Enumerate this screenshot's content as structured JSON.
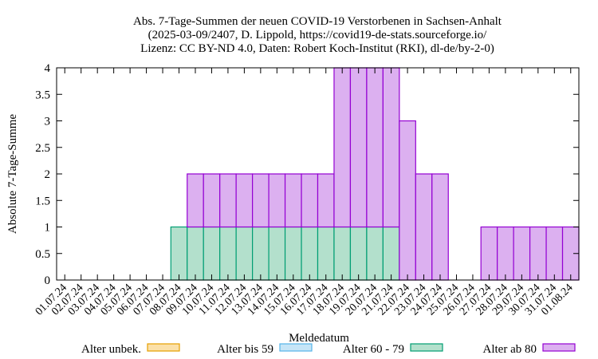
{
  "chart_data": {
    "type": "bar",
    "stacked": true,
    "title_lines": [
      "Abs. 7-Tage-Summen der neuen COVID-19 Verstorbenen in Sachsen-Anhalt",
      "(2025-03-09/2407, D. Lippold, https://covid19-de-stats.sourceforge.io/",
      "Lizenz: CC BY-ND 4.0, Daten: Robert Koch-Institut (RKI), dl-de/by-2-0)"
    ],
    "xlabel": "Meldedatum",
    "ylabel": "Absolute 7-Tage-Summe",
    "ylim": [
      0,
      4
    ],
    "yticks": [
      "0",
      "0.5",
      "1",
      "1.5",
      "2",
      "2.5",
      "3",
      "3.5",
      "4"
    ],
    "categories": [
      "01.07.24",
      "02.07.24",
      "03.07.24",
      "04.07.24",
      "05.07.24",
      "06.07.24",
      "07.07.24",
      "08.07.24",
      "09.07.24",
      "10.07.24",
      "11.07.24",
      "12.07.24",
      "13.07.24",
      "14.07.24",
      "15.07.24",
      "16.07.24",
      "17.07.24",
      "18.07.24",
      "19.07.24",
      "20.07.24",
      "21.07.24",
      "22.07.24",
      "23.07.24",
      "24.07.24",
      "25.07.24",
      "26.07.24",
      "27.07.24",
      "28.07.24",
      "29.07.24",
      "30.07.24",
      "31.07.24",
      "01.08.24"
    ],
    "series": [
      {
        "name": "Alter unbek.",
        "fill": "#fbe0a8",
        "stroke": "#e69f00",
        "values": [
          0,
          0,
          0,
          0,
          0,
          0,
          0,
          0,
          0,
          0,
          0,
          0,
          0,
          0,
          0,
          0,
          0,
          0,
          0,
          0,
          0,
          0,
          0,
          0,
          0,
          0,
          0,
          0,
          0,
          0,
          0,
          0
        ]
      },
      {
        "name": "Alter bis 59",
        "fill": "#c6e5f7",
        "stroke": "#56b4e9",
        "values": [
          0,
          0,
          0,
          0,
          0,
          0,
          0,
          0,
          0,
          0,
          0,
          0,
          0,
          0,
          0,
          0,
          0,
          0,
          0,
          0,
          0,
          0,
          0,
          0,
          0,
          0,
          0,
          0,
          0,
          0,
          0,
          0
        ]
      },
      {
        "name": "Alter 60 - 79",
        "fill": "#b3e0cc",
        "stroke": "#009e73",
        "values": [
          0,
          0,
          0,
          0,
          0,
          0,
          0,
          1,
          1,
          1,
          1,
          1,
          1,
          1,
          1,
          1,
          1,
          1,
          1,
          1,
          1,
          0,
          0,
          0,
          0,
          0,
          0,
          0,
          0,
          0,
          0,
          0
        ]
      },
      {
        "name": "Alter ab 80",
        "fill": "#dcb0f0",
        "stroke": "#9400d3",
        "values": [
          0,
          0,
          0,
          0,
          0,
          0,
          0,
          0,
          1,
          1,
          1,
          1,
          1,
          1,
          1,
          1,
          1,
          3,
          3,
          3,
          3,
          3,
          2,
          2,
          0,
          0,
          1,
          1,
          1,
          1,
          1,
          1
        ]
      }
    ],
    "legend_position": "bottom"
  }
}
